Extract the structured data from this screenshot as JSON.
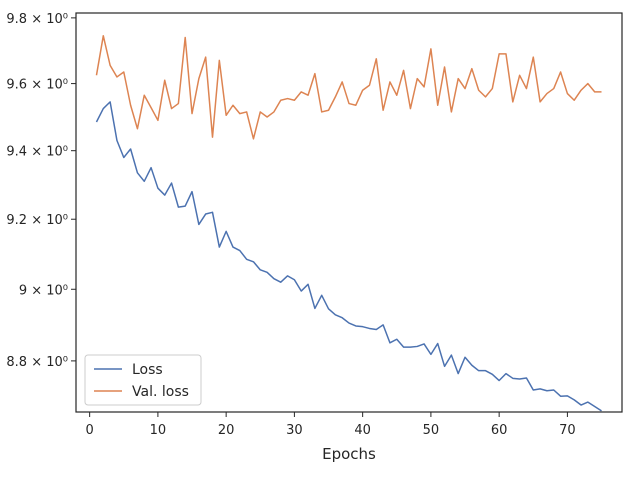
{
  "chart_data": {
    "type": "line",
    "title": "",
    "xlabel": "Epochs",
    "ylabel": "",
    "y_scale": "log",
    "xlim": [
      -2,
      78
    ],
    "ylim": [
      8.66,
      9.815
    ],
    "x_ticks": [
      0,
      10,
      20,
      30,
      40,
      50,
      60,
      70
    ],
    "x_tick_labels": [
      "0",
      "10",
      "20",
      "30",
      "40",
      "50",
      "60",
      "70"
    ],
    "y_ticks": [
      8.8,
      9.0,
      9.2,
      9.4,
      9.6,
      9.8
    ],
    "y_tick_labels": [
      "8.8 × 10⁰",
      "9 × 10⁰",
      "9.2 × 10⁰",
      "9.4 × 10⁰",
      "9.6 × 10⁰",
      "9.8 × 10⁰"
    ],
    "grid": false,
    "legend_position": "lower-left",
    "x": [
      1,
      2,
      3,
      4,
      5,
      6,
      7,
      8,
      9,
      10,
      11,
      12,
      13,
      14,
      15,
      16,
      17,
      18,
      19,
      20,
      21,
      22,
      23,
      24,
      25,
      26,
      27,
      28,
      29,
      30,
      31,
      32,
      33,
      34,
      35,
      36,
      37,
      38,
      39,
      40,
      41,
      42,
      43,
      44,
      45,
      46,
      47,
      48,
      49,
      50,
      51,
      52,
      53,
      54,
      55,
      56,
      57,
      58,
      59,
      60,
      61,
      62,
      63,
      64,
      65,
      66,
      67,
      68,
      69,
      70,
      71,
      72,
      73,
      74,
      75
    ],
    "series": [
      {
        "name": "Loss",
        "color": "#4c72b0",
        "values": [
          9.485,
          9.525,
          9.545,
          9.43,
          9.38,
          9.405,
          9.335,
          9.31,
          9.35,
          9.29,
          9.27,
          9.305,
          9.235,
          9.238,
          9.28,
          9.185,
          9.215,
          9.22,
          9.12,
          9.165,
          9.12,
          9.11,
          9.085,
          9.078,
          9.055,
          9.048,
          9.03,
          9.02,
          9.038,
          9.027,
          8.995,
          9.014,
          8.946,
          8.983,
          8.945,
          8.928,
          8.92,
          8.905,
          8.897,
          8.895,
          8.89,
          8.887,
          8.9,
          8.85,
          8.86,
          8.838,
          8.838,
          8.84,
          8.847,
          8.818,
          8.848,
          8.785,
          8.816,
          8.765,
          8.81,
          8.788,
          8.773,
          8.773,
          8.763,
          8.746,
          8.765,
          8.752,
          8.75,
          8.753,
          8.72,
          8.723,
          8.718,
          8.72,
          8.703,
          8.704,
          8.693,
          8.679,
          8.687,
          8.675,
          8.663
        ]
      },
      {
        "name": "Val. loss",
        "color": "#dd8452",
        "values": [
          9.625,
          9.745,
          9.655,
          9.62,
          9.635,
          9.535,
          9.465,
          9.565,
          9.528,
          9.49,
          9.61,
          9.525,
          9.54,
          9.74,
          9.51,
          9.615,
          9.68,
          9.44,
          9.67,
          9.505,
          9.535,
          9.51,
          9.515,
          9.435,
          9.515,
          9.5,
          9.515,
          9.55,
          9.555,
          9.55,
          9.575,
          9.565,
          9.63,
          9.515,
          9.52,
          9.56,
          9.605,
          9.54,
          9.535,
          9.58,
          9.595,
          9.675,
          9.52,
          9.605,
          9.565,
          9.64,
          9.525,
          9.615,
          9.59,
          9.705,
          9.535,
          9.65,
          9.515,
          9.615,
          9.585,
          9.645,
          9.58,
          9.56,
          9.585,
          9.69,
          9.69,
          9.545,
          9.625,
          9.585,
          9.68,
          9.545,
          9.57,
          9.585,
          9.635,
          9.57,
          9.55,
          9.58,
          9.6,
          9.575,
          9.575
        ]
      }
    ]
  }
}
